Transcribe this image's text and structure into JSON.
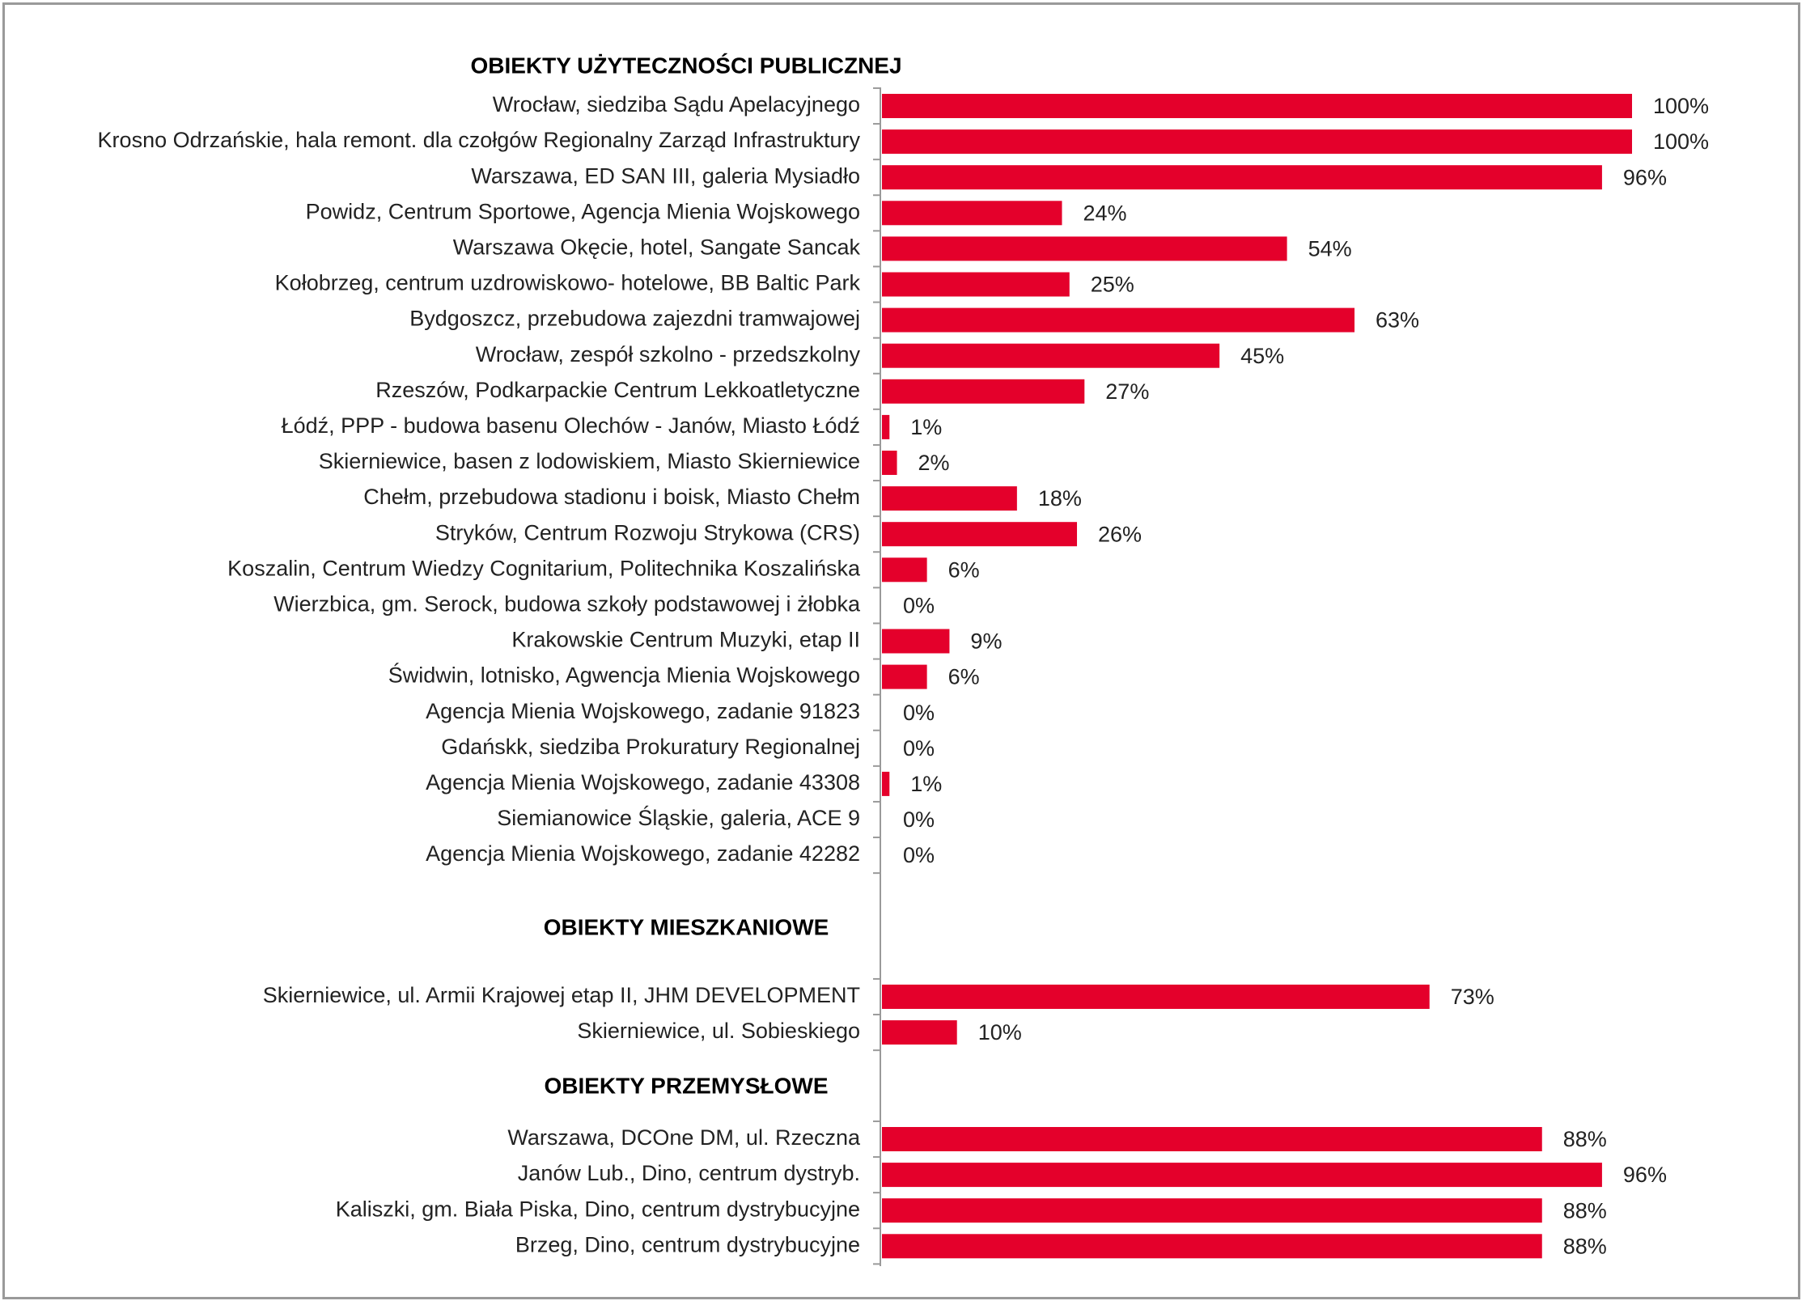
{
  "chart_data": {
    "type": "bar",
    "orientation": "horizontal",
    "xlim": [
      0,
      100
    ],
    "value_suffix": "%",
    "bar_color": "#e4002b",
    "grid": false,
    "legend": "none",
    "sections": [
      {
        "title": "OBIEKTY UŻYTECZNOŚCI PUBLICZNEJ",
        "items": [
          {
            "label": "Wrocław, siedziba Sądu Apelacyjnego",
            "value": 100
          },
          {
            "label": "Krosno Odrzańskie, hala remont. dla czołgów Regionalny Zarząd Infrastruktury",
            "value": 100
          },
          {
            "label": "Warszawa, ED SAN III, galeria Mysiadło",
            "value": 96
          },
          {
            "label": "Powidz, Centrum Sportowe, Agencja Mienia Wojskowego",
            "value": 24
          },
          {
            "label": "Warszawa Okęcie, hotel,  Sangate Sancak",
            "value": 54
          },
          {
            "label": "Kołobrzeg, centrum uzdrowiskowo- hotelowe, BB Baltic Park",
            "value": 25
          },
          {
            "label": "Bydgoszcz, przebudowa zajezdni tramwajowej",
            "value": 63
          },
          {
            "label": "Wrocław, zespół szkolno - przedszkolny",
            "value": 45
          },
          {
            "label": "Rzeszów, Podkarpackie Centrum Lekkoatletyczne",
            "value": 27
          },
          {
            "label": "Łódź, PPP - budowa basenu Olechów - Janów, Miasto Łódź",
            "value": 1
          },
          {
            "label": "Skierniewice, basen z lodowiskiem, Miasto Skierniewice",
            "value": 2
          },
          {
            "label": "Chełm, przebudowa stadionu i boisk, Miasto Chełm",
            "value": 18
          },
          {
            "label": "Stryków, Centrum Rozwoju Strykowa (CRS)",
            "value": 26
          },
          {
            "label": "Koszalin, Centrum Wiedzy Cognitarium, Politechnika Koszalińska",
            "value": 6
          },
          {
            "label": "Wierzbica, gm. Serock, budowa szkoły podstawowej i żłobka",
            "value": 0
          },
          {
            "label": "Krakowskie Centrum Muzyki, etap II",
            "value": 9
          },
          {
            "label": "Świdwin, lotnisko, Agwencja Mienia Wojskowego",
            "value": 6
          },
          {
            "label": "Agencja Mienia Wojskowego, zadanie 91823",
            "value": 0
          },
          {
            "label": "Gdańskk, siedziba Prokuratury Regionalnej",
            "value": 0
          },
          {
            "label": "Agencja Mienia Wojskowego, zadanie 43308",
            "value": 1
          },
          {
            "label": "Siemianowice Śląskie, galeria, ACE 9",
            "value": 0
          },
          {
            "label": "Agencja Mienia Wojskowego, zadanie 42282",
            "value": 0
          }
        ]
      },
      {
        "title": "OBIEKTY MIESZKANIOWE",
        "items": [
          {
            "label": "Skierniewice, ul. Armii Krajowej etap II, JHM DEVELOPMENT",
            "value": 73
          },
          {
            "label": "Skierniewice, ul. Sobieskiego",
            "value": 10
          }
        ]
      },
      {
        "title": "OBIEKTY PRZEMYSŁOWE",
        "items": [
          {
            "label": "Warszawa, DCOne DM, ul. Rzeczna",
            "value": 88
          },
          {
            "label": "Janów Lub., Dino, centrum dystryb.",
            "value": 96
          },
          {
            "label": "Kaliszki, gm. Biała Piska, Dino, centrum dystrybucyjne",
            "value": 88
          },
          {
            "label": "Brzeg, Dino, centrum dystrybucyjne",
            "value": 88
          }
        ]
      }
    ]
  }
}
